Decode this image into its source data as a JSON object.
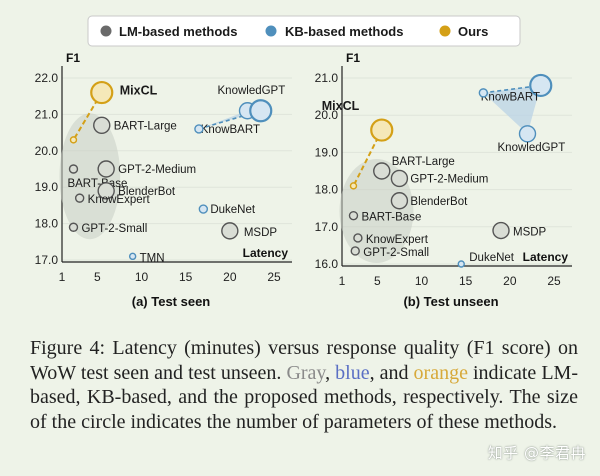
{
  "legend": [
    {
      "label": "LM-based methods",
      "color": "#6a6a6a"
    },
    {
      "label": "KB-based methods",
      "color": "#4f8fbc"
    },
    {
      "label": "Ours",
      "color": "#d4a017"
    }
  ],
  "colors": {
    "lm": "#8e8e8e",
    "kb": "#4f8fbc",
    "ours": "#d4a017",
    "lm_fill": "#d9ddd5",
    "kb_fill": "#d6e6f2",
    "ours_fill": "#f5e8b8"
  },
  "chart_data": [
    {
      "type": "scatter",
      "title": "(a) Test seen",
      "ylabel": "F1",
      "xlabel": "Latency",
      "x_ticks": [
        1,
        5,
        10,
        15,
        20,
        25
      ],
      "y_ticks": [
        "17.0",
        "18.0",
        "19.0",
        "20.0",
        "21.0",
        "22.0"
      ],
      "xlim": [
        1,
        25
      ],
      "ylim": [
        17.0,
        22.0
      ],
      "points": [
        {
          "name": "MixCL",
          "x": 5.5,
          "y": 21.6,
          "group": "ours",
          "size": "large"
        },
        {
          "name": "",
          "x": 2.3,
          "y": 20.3,
          "group": "ours",
          "size": "tiny"
        },
        {
          "name": "BART-Large",
          "x": 5.5,
          "y": 20.7,
          "group": "lm",
          "size": "medium"
        },
        {
          "name": "BART-Base",
          "x": 2.3,
          "y": 19.5,
          "group": "lm",
          "size": "small"
        },
        {
          "name": "GPT-2-Medium",
          "x": 6.0,
          "y": 19.5,
          "group": "lm",
          "size": "medium"
        },
        {
          "name": "BlenderBot",
          "x": 6.0,
          "y": 18.9,
          "group": "lm",
          "size": "medium"
        },
        {
          "name": "KnowExpert",
          "x": 3.0,
          "y": 18.7,
          "group": "lm",
          "size": "small"
        },
        {
          "name": "GPT-2-Small",
          "x": 2.3,
          "y": 17.9,
          "group": "lm",
          "size": "small"
        },
        {
          "name": "MSDP",
          "x": 20.0,
          "y": 17.8,
          "group": "lm",
          "size": "medium"
        },
        {
          "name": "TMN",
          "x": 9.0,
          "y": 17.1,
          "group": "kb",
          "size": "tiny"
        },
        {
          "name": "DukeNet",
          "x": 17.0,
          "y": 18.4,
          "group": "kb",
          "size": "small"
        },
        {
          "name": "KnowledGPT",
          "x": 22.0,
          "y": 21.1,
          "group": "kb",
          "size": "medium"
        },
        {
          "name": "KnowBART",
          "x": 23.5,
          "y": 21.1,
          "group": "kb",
          "size": "large"
        },
        {
          "name": "",
          "x": 16.5,
          "y": 20.6,
          "group": "kb",
          "size": "small"
        }
      ]
    },
    {
      "type": "scatter",
      "title": "(b) Test unseen",
      "ylabel": "F1",
      "xlabel": "Latency",
      "x_ticks": [
        1,
        5,
        10,
        15,
        20,
        25
      ],
      "y_ticks": [
        "16.0",
        "17.0",
        "18.0",
        "19.0",
        "20.0",
        "21.0"
      ],
      "xlim": [
        1,
        25
      ],
      "ylim": [
        16.0,
        21.0
      ],
      "points": [
        {
          "name": "MixCL",
          "x": 5.5,
          "y": 19.6,
          "group": "ours",
          "size": "large"
        },
        {
          "name": "",
          "x": 2.3,
          "y": 18.1,
          "group": "ours",
          "size": "tiny"
        },
        {
          "name": "BART-Large",
          "x": 5.5,
          "y": 18.5,
          "group": "lm",
          "size": "medium"
        },
        {
          "name": "GPT-2-Medium",
          "x": 7.5,
          "y": 18.3,
          "group": "lm",
          "size": "medium"
        },
        {
          "name": "BlenderBot",
          "x": 7.5,
          "y": 17.7,
          "group": "lm",
          "size": "medium"
        },
        {
          "name": "BART-Base",
          "x": 2.3,
          "y": 17.3,
          "group": "lm",
          "size": "small"
        },
        {
          "name": "KnowExpert",
          "x": 2.8,
          "y": 16.7,
          "group": "lm",
          "size": "small"
        },
        {
          "name": "GPT-2-Small",
          "x": 2.5,
          "y": 16.35,
          "group": "lm",
          "size": "small"
        },
        {
          "name": "MSDP",
          "x": 19.0,
          "y": 16.9,
          "group": "lm",
          "size": "medium"
        },
        {
          "name": "DukeNet",
          "x": 14.5,
          "y": 16.0,
          "group": "kb",
          "size": "tiny"
        },
        {
          "name": "KnowBART",
          "x": 23.5,
          "y": 20.8,
          "group": "kb",
          "size": "large"
        },
        {
          "name": "",
          "x": 17.0,
          "y": 20.6,
          "group": "kb",
          "size": "small"
        },
        {
          "name": "KnowledGPT",
          "x": 22.0,
          "y": 19.5,
          "group": "kb",
          "size": "medium"
        }
      ]
    }
  ],
  "caption": {
    "part1": "Figure 4: Latency (minutes) versus response quality (F1 score) on WoW test seen and test unseen. ",
    "gray": "Gray",
    "comma1": ", ",
    "blue": "blue",
    "and": ", and ",
    "orange": "orange",
    "part2": " indicate LM-based, KB-based, and the proposed methods, respectively. The size of the circle indicates the number of parameters of these methods."
  },
  "watermark": "知乎 @李君冉"
}
